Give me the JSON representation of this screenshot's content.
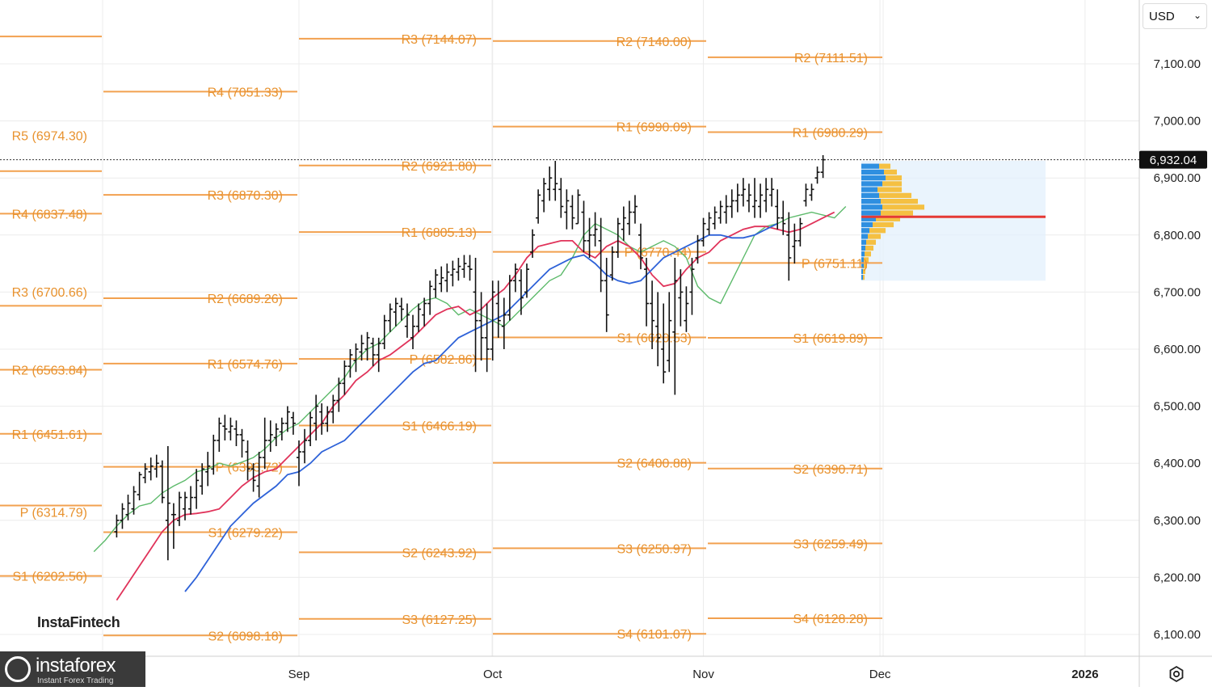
{
  "currency_select": {
    "value": "USD",
    "chevron_icon": "chevron-down-icon"
  },
  "watermarks": {
    "top": "InstaFintech",
    "brand": "instaforex",
    "brand_sub": "Instant Forex Trading"
  },
  "settings_icon": "settings-gear-icon",
  "colors": {
    "pivot_line": "#f2a14f",
    "pivot_text": "#e8922e",
    "ma_green": "#5dba6b",
    "ma_red": "#e0335a",
    "ma_blue": "#2e62d8",
    "poc": "#e53935",
    "profile_blue": "#2f8fe0",
    "profile_yellow": "#f5c042",
    "bar": "#111111",
    "grid": "#ececec"
  },
  "chart_data": {
    "type": "ohlc",
    "title": "",
    "currency": "USD",
    "ylim": [
      6050,
      7200
    ],
    "y_ticks": [
      "6,100.00",
      "6,200.00",
      "6,300.00",
      "6,400.00",
      "6,500.00",
      "6,600.00",
      "6,700.00",
      "6,800.00",
      "6,900.00",
      "7,000.00",
      "7,100.00"
    ],
    "x_ticks": [
      {
        "label": "Sep",
        "day": 29
      },
      {
        "label": "Oct",
        "day": 63
      },
      {
        "label": "Nov",
        "day": 100
      },
      {
        "label": "Dec",
        "day": 131
      },
      {
        "label": "2026",
        "day": 167
      }
    ],
    "last_price": 6932.04,
    "last_price_label": "6,932.04",
    "pivot_periods": [
      {
        "start": -1,
        "end": 0,
        "levels": [
          {
            "label": "R5 (6974.30)",
            "price": 6974.3,
            "text_y": 6974.3,
            "line_y": 6912
          },
          {
            "label": "R4 (6837.48)",
            "price": 6837.48,
            "text_y": 6837.48,
            "line_y": 6837.48
          },
          {
            "label": "R3 (6700.66)",
            "price": 6700.66,
            "text_y": 6700.66,
            "line_y": 6676
          },
          {
            "label": "R2 (6563.84)",
            "price": 6563.84,
            "text_y": 6563.84,
            "line_y": 6563.84
          },
          {
            "label": "R1 (6451.61)",
            "price": 6451.61,
            "text_y": 6451.61,
            "line_y": 6451.61
          },
          {
            "label": "P (6314.79)",
            "price": 6314.79,
            "text_y": 6314.79,
            "line_y": 6326
          },
          {
            "label": "S1 (6202.56)",
            "price": 6202.56,
            "text_y": 6202.56,
            "line_y": 6202.56
          },
          {
            "label": "",
            "price": 7148,
            "text_y": 7148,
            "line_y": 7148
          }
        ]
      },
      {
        "start": 0,
        "end": 1,
        "levels": [
          {
            "label": "R4 (7051.33)",
            "price": 7051.33,
            "text_y": 7051.33,
            "line_y": 7051.33
          },
          {
            "label": "R3 (6870.30)",
            "price": 6870.3,
            "text_y": 6870.3,
            "line_y": 6870.3
          },
          {
            "label": "R2 (6689.26)",
            "price": 6689.26,
            "text_y": 6689.26,
            "line_y": 6689.26
          },
          {
            "label": "R1 (6574.76)",
            "price": 6574.76,
            "text_y": 6574.76,
            "line_y": 6574.76
          },
          {
            "label": "P (6393.72)",
            "price": 6393.72,
            "text_y": 6393.72,
            "line_y": 6393.72
          },
          {
            "label": "S1 (6279.22)",
            "price": 6279.22,
            "text_y": 6279.22,
            "line_y": 6279.22
          },
          {
            "label": "S2 (6098.18)",
            "price": 6098.18,
            "text_y": 6098.18,
            "line_y": 6098.18
          }
        ]
      },
      {
        "start": 1,
        "end": 2,
        "levels": [
          {
            "label": "R3 (7144.07)",
            "price": 7144.07,
            "text_y": 7144.07,
            "line_y": 7144.07
          },
          {
            "label": "R2 (6921.80)",
            "price": 6921.8,
            "text_y": 6921.8,
            "line_y": 6921.8
          },
          {
            "label": "R1 (6805.13)",
            "price": 6805.13,
            "text_y": 6805.13,
            "line_y": 6805.13
          },
          {
            "label": "P (6582.86)",
            "price": 6582.86,
            "text_y": 6582.86,
            "line_y": 6582.86
          },
          {
            "label": "S1 (6466.19)",
            "price": 6466.19,
            "text_y": 6466.19,
            "line_y": 6466.19
          },
          {
            "label": "S2 (6243.92)",
            "price": 6243.92,
            "text_y": 6243.92,
            "line_y": 6243.92
          },
          {
            "label": "S3 (6127.25)",
            "price": 6127.25,
            "text_y": 6127.25,
            "line_y": 6127.25
          }
        ]
      },
      {
        "start": 2,
        "end": 3,
        "levels": [
          {
            "label": "R2 (7140.00)",
            "price": 7140,
            "text_y": 7140,
            "line_y": 7140
          },
          {
            "label": "R1 (6990.09)",
            "price": 6990.09,
            "text_y": 6990.09,
            "line_y": 6990.09
          },
          {
            "label": "P (6770.44)",
            "price": 6770.44,
            "text_y": 6770.44,
            "line_y": 6770.44
          },
          {
            "label": "S1 (6620.53)",
            "price": 6620.53,
            "text_y": 6620.53,
            "line_y": 6620.53
          },
          {
            "label": "S2 (6400.88)",
            "price": 6400.88,
            "text_y": 6400.88,
            "line_y": 6400.88
          },
          {
            "label": "S3 (6250.97)",
            "price": 6250.97,
            "text_y": 6250.97,
            "line_y": 6250.97
          },
          {
            "label": "S4 (6101.07)",
            "price": 6101.07,
            "text_y": 6101.07,
            "line_y": 6101.07
          }
        ]
      },
      {
        "start": 3,
        "end": 4,
        "levels": [
          {
            "label": "R2 (7111.51)",
            "price": 7111.51,
            "text_y": 7111.51,
            "line_y": 7111.51
          },
          {
            "label": "R1 (6980.29)",
            "price": 6980.29,
            "text_y": 6980.29,
            "line_y": 6980.29
          },
          {
            "label": "P (6751.11)",
            "price": 6751.11,
            "text_y": 6751.11,
            "line_y": 6751.11
          },
          {
            "label": "S1 (6619.89)",
            "price": 6619.89,
            "text_y": 6619.89,
            "line_y": 6619.89
          },
          {
            "label": "S2 (6390.71)",
            "price": 6390.71,
            "text_y": 6390.71,
            "line_y": 6390.71
          },
          {
            "label": "S3 (6259.49)",
            "price": 6259.49,
            "text_y": 6259.49,
            "line_y": 6259.49
          },
          {
            "label": "S4 (6128.28)",
            "price": 6128.28,
            "text_y": 6128.28,
            "line_y": 6128.28
          }
        ]
      }
    ],
    "ohlc": [
      [
        6280,
        6310,
        6270,
        6300
      ],
      [
        6300,
        6330,
        6285,
        6320
      ],
      [
        6310,
        6345,
        6300,
        6330
      ],
      [
        6320,
        6360,
        6310,
        6350
      ],
      [
        6345,
        6385,
        6335,
        6380
      ],
      [
        6375,
        6400,
        6365,
        6390
      ],
      [
        6385,
        6410,
        6370,
        6395
      ],
      [
        6390,
        6415,
        6375,
        6400
      ],
      [
        6395,
        6405,
        6330,
        6340
      ],
      [
        6300,
        6430,
        6230,
        6330
      ],
      [
        6310,
        6330,
        6250,
        6310
      ],
      [
        6300,
        6350,
        6290,
        6340
      ],
      [
        6320,
        6350,
        6300,
        6340
      ],
      [
        6320,
        6360,
        6310,
        6340
      ],
      [
        6340,
        6390,
        6320,
        6370
      ],
      [
        6360,
        6400,
        6345,
        6390
      ],
      [
        6385,
        6420,
        6360,
        6395
      ],
      [
        6390,
        6450,
        6380,
        6440
      ],
      [
        6440,
        6480,
        6420,
        6470
      ],
      [
        6465,
        6485,
        6440,
        6460
      ],
      [
        6455,
        6480,
        6440,
        6465
      ],
      [
        6460,
        6475,
        6430,
        6450
      ],
      [
        6450,
        6460,
        6410,
        6440
      ],
      [
        6420,
        6440,
        6370,
        6390
      ],
      [
        6390,
        6400,
        6350,
        6370
      ],
      [
        6360,
        6420,
        6340,
        6410
      ],
      [
        6410,
        6480,
        6390,
        6440
      ],
      [
        6440,
        6475,
        6420,
        6450
      ],
      [
        6445,
        6470,
        6430,
        6460
      ],
      [
        6455,
        6480,
        6440,
        6470
      ],
      [
        6470,
        6500,
        6455,
        6490
      ],
      [
        6480,
        6490,
        6450,
        6470
      ],
      [
        6410,
        6440,
        6360,
        6420
      ],
      [
        6420,
        6460,
        6400,
        6440
      ],
      [
        6440,
        6490,
        6430,
        6480
      ],
      [
        6470,
        6520,
        6440,
        6500
      ],
      [
        6490,
        6505,
        6450,
        6470
      ],
      [
        6470,
        6500,
        6455,
        6490
      ],
      [
        6490,
        6520,
        6470,
        6510
      ],
      [
        6510,
        6550,
        6490,
        6540
      ],
      [
        6540,
        6580,
        6520,
        6570
      ],
      [
        6570,
        6600,
        6550,
        6590
      ],
      [
        6580,
        6610,
        6560,
        6600
      ],
      [
        6595,
        6625,
        6580,
        6610
      ],
      [
        6600,
        6630,
        6580,
        6620
      ],
      [
        6610,
        6620,
        6570,
        6590
      ],
      [
        6590,
        6620,
        6560,
        6610
      ],
      [
        6610,
        6660,
        6600,
        6650
      ],
      [
        6650,
        6680,
        6630,
        6670
      ],
      [
        6665,
        6690,
        6640,
        6680
      ],
      [
        6675,
        6690,
        6650,
        6670
      ],
      [
        6640,
        6680,
        6620,
        6660
      ],
      [
        6620,
        6660,
        6600,
        6640
      ],
      [
        6640,
        6680,
        6630,
        6670
      ],
      [
        6660,
        6690,
        6640,
        6680
      ],
      [
        6680,
        6720,
        6660,
        6710
      ],
      [
        6705,
        6740,
        6690,
        6730
      ],
      [
        6715,
        6745,
        6700,
        6725
      ],
      [
        6720,
        6750,
        6700,
        6735
      ],
      [
        6730,
        6755,
        6710,
        6740
      ],
      [
        6735,
        6760,
        6720,
        6745
      ],
      [
        6740,
        6765,
        6725,
        6750
      ],
      [
        6745,
        6765,
        6720,
        6740
      ],
      [
        6700,
        6760,
        6560,
        6650
      ],
      [
        6650,
        6700,
        6580,
        6620
      ],
      [
        6620,
        6680,
        6560,
        6600
      ],
      [
        6600,
        6720,
        6580,
        6700
      ],
      [
        6680,
        6720,
        6620,
        6650
      ],
      [
        6640,
        6690,
        6600,
        6660
      ],
      [
        6660,
        6730,
        6650,
        6720
      ],
      [
        6720,
        6750,
        6700,
        6740
      ],
      [
        6720,
        6740,
        6660,
        6690
      ],
      [
        6700,
        6750,
        6690,
        6740
      ],
      [
        6770,
        6810,
        6760,
        6800
      ],
      [
        6830,
        6880,
        6820,
        6870
      ],
      [
        6860,
        6900,
        6840,
        6890
      ],
      [
        6880,
        6920,
        6860,
        6900
      ],
      [
        6880,
        6930,
        6860,
        6890
      ],
      [
        6880,
        6900,
        6830,
        6850
      ],
      [
        6840,
        6880,
        6810,
        6860
      ],
      [
        6850,
        6870,
        6810,
        6830
      ],
      [
        6820,
        6880,
        6820,
        6870
      ],
      [
        6840,
        6860,
        6770,
        6790
      ],
      [
        6790,
        6830,
        6760,
        6800
      ],
      [
        6800,
        6840,
        6780,
        6810
      ],
      [
        6790,
        6830,
        6700,
        6720
      ],
      [
        6720,
        6760,
        6630,
        6660
      ],
      [
        6730,
        6780,
        6720,
        6770
      ],
      [
        6770,
        6830,
        6760,
        6820
      ],
      [
        6810,
        6850,
        6790,
        6830
      ],
      [
        6820,
        6860,
        6800,
        6840
      ],
      [
        6840,
        6870,
        6820,
        6850
      ],
      [
        6800,
        6820,
        6740,
        6760
      ],
      [
        6740,
        6760,
        6640,
        6680
      ],
      [
        6680,
        6720,
        6600,
        6650
      ],
      [
        6640,
        6700,
        6570,
        6620
      ],
      [
        6600,
        6680,
        6540,
        6560
      ],
      [
        6580,
        6700,
        6560,
        6650
      ],
      [
        6630,
        6760,
        6520,
        6720
      ],
      [
        6690,
        6740,
        6640,
        6700
      ],
      [
        6650,
        6710,
        6630,
        6680
      ],
      [
        6700,
        6760,
        6660,
        6740
      ],
      [
        6760,
        6800,
        6750,
        6790
      ],
      [
        6790,
        6830,
        6780,
        6820
      ],
      [
        6810,
        6840,
        6800,
        6830
      ],
      [
        6820,
        6850,
        6810,
        6840
      ],
      [
        6830,
        6860,
        6820,
        6850
      ],
      [
        6840,
        6870,
        6820,
        6850
      ],
      [
        6850,
        6880,
        6830,
        6860
      ],
      [
        6860,
        6890,
        6840,
        6870
      ],
      [
        6870,
        6900,
        6850,
        6880
      ],
      [
        6860,
        6890,
        6840,
        6870
      ],
      [
        6850,
        6900,
        6830,
        6860
      ],
      [
        6850,
        6890,
        6830,
        6870
      ],
      [
        6860,
        6900,
        6840,
        6880
      ],
      [
        6870,
        6900,
        6850,
        6880
      ],
      [
        6850,
        6880,
        6810,
        6830
      ],
      [
        6830,
        6860,
        6800,
        6820
      ],
      [
        6800,
        6840,
        6720,
        6760
      ],
      [
        6780,
        6820,
        6750,
        6790
      ],
      [
        6790,
        6830,
        6780,
        6820
      ],
      [
        6860,
        6890,
        6850,
        6880
      ],
      [
        6870,
        6890,
        6860,
        6880
      ],
      [
        6900,
        6920,
        6890,
        6910
      ],
      [
        6910,
        6940,
        6900,
        6932
      ]
    ],
    "ma_green": [
      6245,
      6265,
      6290,
      6310,
      6325,
      6330,
      6348,
      6360,
      6370,
      6385,
      6390,
      6400,
      6395,
      6402,
      6410,
      6425,
      6445,
      6460,
      6470,
      6490,
      6510,
      6530,
      6550,
      6580,
      6600,
      6610,
      6630,
      6650,
      6670,
      6685,
      6690,
      6680,
      6660,
      6670,
      6660,
      6650,
      6640,
      6660,
      6680,
      6700,
      6720,
      6730,
      6760,
      6800,
      6820,
      6810,
      6800,
      6780,
      6770,
      6780,
      6790,
      6780,
      6760,
      6710,
      6690,
      6680,
      6720,
      6760,
      6800,
      6815,
      6820,
      6830,
      6835,
      6840,
      6835,
      6830,
      6850
    ],
    "ma_red": [
      6160,
      6190,
      6220,
      6250,
      6280,
      6300,
      6310,
      6312,
      6315,
      6320,
      6340,
      6360,
      6375,
      6385,
      6390,
      6410,
      6430,
      6450,
      6470,
      6500,
      6520,
      6545,
      6560,
      6580,
      6590,
      6605,
      6620,
      6640,
      6660,
      6670,
      6675,
      6660,
      6670,
      6690,
      6705,
      6730,
      6760,
      6780,
      6785,
      6790,
      6790,
      6770,
      6760,
      6780,
      6790,
      6780,
      6760,
      6730,
      6710,
      6715,
      6740,
      6760,
      6770,
      6790,
      6800,
      6810,
      6815,
      6815,
      6810,
      6805,
      6810,
      6820,
      6830,
      6840
    ],
    "ma_blue": [
      6175,
      6200,
      6230,
      6260,
      6290,
      6310,
      6330,
      6345,
      6360,
      6380,
      6385,
      6400,
      6420,
      6430,
      6440,
      6460,
      6480,
      6500,
      6520,
      6540,
      6560,
      6575,
      6580,
      6600,
      6620,
      6630,
      6640,
      6650,
      6660,
      6680,
      6700,
      6720,
      6740,
      6750,
      6760,
      6765,
      6750,
      6730,
      6720,
      6715,
      6720,
      6740,
      6760,
      6770,
      6780,
      6790,
      6800,
      6800,
      6795,
      6795,
      6800,
      6810,
      6820
    ],
    "volume_profile": {
      "poc": 6832,
      "price_from": 6720,
      "price_to": 6930,
      "blue": [
        22,
        28,
        30,
        26,
        20,
        22,
        24,
        26,
        24,
        18,
        14,
        10,
        8,
        6,
        5,
        4,
        3,
        3,
        2,
        2
      ],
      "yellow": [
        14,
        16,
        20,
        24,
        30,
        40,
        46,
        52,
        40,
        30,
        26,
        20,
        16,
        12,
        10,
        8,
        6,
        4,
        3,
        2
      ]
    }
  }
}
